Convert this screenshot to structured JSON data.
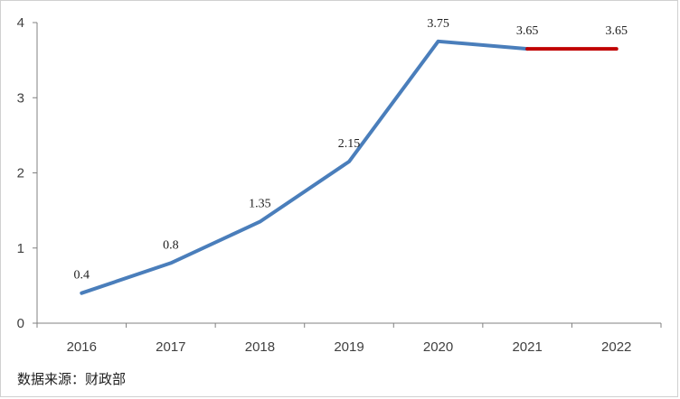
{
  "chart_data": {
    "type": "line",
    "title": "",
    "xlabel": "",
    "ylabel": "",
    "x": [
      "2016",
      "2017",
      "2018",
      "2019",
      "2020",
      "2021",
      "2022"
    ],
    "series": [
      {
        "values": [
          0.4,
          0.8,
          1.35,
          2.15,
          3.75,
          3.65,
          3.65
        ],
        "data_labels": [
          "0.4",
          "0.8",
          "1.35",
          "2.15",
          "3.75",
          "3.65",
          "3.65"
        ],
        "color": "#4a7ebb",
        "highlight_color": "#c00000",
        "highlight_from": "2021"
      }
    ],
    "ylim": [
      0,
      4
    ],
    "yticks": [
      "0",
      "1",
      "2",
      "3",
      "4"
    ],
    "grid": false,
    "legend": "none"
  },
  "footer": {
    "source": "数据来源：财政部"
  }
}
